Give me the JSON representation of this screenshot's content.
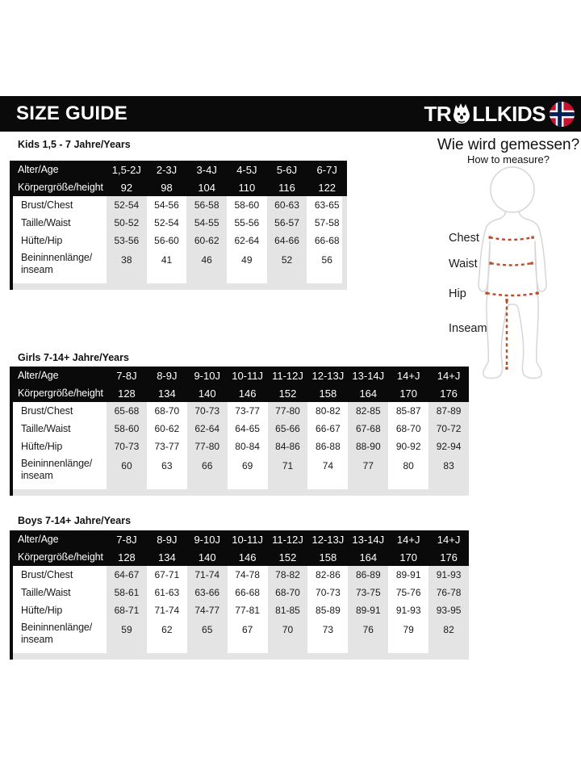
{
  "header_bar": {
    "title": "SIZE GUIDE",
    "brand_prefix": "TR",
    "brand_suffix": "LLKIDS"
  },
  "measure": {
    "title": "Wie wird gemessen?",
    "subtitle": "How to measure?",
    "labels": [
      "Chest",
      "Waist",
      "Hip",
      "Inseam"
    ]
  },
  "sections": [
    {
      "title": "Kids 1,5 - 7 Jahre/Years",
      "header_rows": [
        {
          "label": "Alter/Age",
          "values": [
            "1,5-2J",
            "2-3J",
            "3-4J",
            "4-5J",
            "5-6J",
            "6-7J"
          ]
        },
        {
          "label": "Körpergröße/height",
          "values": [
            "92",
            "98",
            "104",
            "110",
            "116",
            "122"
          ]
        }
      ],
      "rows": [
        {
          "label": "Brust/Chest",
          "values": [
            "52-54",
            "54-56",
            "56-58",
            "58-60",
            "60-63",
            "63-65"
          ]
        },
        {
          "label": "Taille/Waist",
          "values": [
            "50-52",
            "52-54",
            "54-55",
            "55-56",
            "56-57",
            "57-58"
          ]
        },
        {
          "label": "Hüfte/Hip",
          "values": [
            "53-56",
            "56-60",
            "60-62",
            "62-64",
            "64-66",
            "66-68"
          ]
        },
        {
          "label": "Beininnenlänge/\ninseam",
          "values": [
            "38",
            "41",
            "46",
            "49",
            "52",
            "56"
          ]
        }
      ]
    },
    {
      "title": "Girls 7-14+ Jahre/Years",
      "header_rows": [
        {
          "label": "Alter/Age",
          "values": [
            "7-8J",
            "8-9J",
            "9-10J",
            "10-11J",
            "11-12J",
            "12-13J",
            "13-14J",
            "14+J",
            "14+J"
          ]
        },
        {
          "label": "Körpergröße/height",
          "values": [
            "128",
            "134",
            "140",
            "146",
            "152",
            "158",
            "164",
            "170",
            "176"
          ]
        }
      ],
      "rows": [
        {
          "label": "Brust/Chest",
          "values": [
            "65-68",
            "68-70",
            "70-73",
            "73-77",
            "77-80",
            "80-82",
            "82-85",
            "85-87",
            "87-89"
          ]
        },
        {
          "label": "Taille/Waist",
          "values": [
            "58-60",
            "60-62",
            "62-64",
            "64-65",
            "65-66",
            "66-67",
            "67-68",
            "68-70",
            "70-72"
          ]
        },
        {
          "label": "Hüfte/Hip",
          "values": [
            "70-73",
            "73-77",
            "77-80",
            "80-84",
            "84-86",
            "86-88",
            "88-90",
            "90-92",
            "92-94"
          ]
        },
        {
          "label": "Beininnenlänge/\ninseam",
          "values": [
            "60",
            "63",
            "66",
            "69",
            "71",
            "74",
            "77",
            "80",
            "83"
          ]
        }
      ]
    },
    {
      "title": "Boys 7-14+ Jahre/Years",
      "header_rows": [
        {
          "label": "Alter/Age",
          "values": [
            "7-8J",
            "8-9J",
            "9-10J",
            "10-11J",
            "11-12J",
            "12-13J",
            "13-14J",
            "14+J",
            "14+J"
          ]
        },
        {
          "label": "Körpergröße/height",
          "values": [
            "128",
            "134",
            "140",
            "146",
            "152",
            "158",
            "164",
            "170",
            "176"
          ]
        }
      ],
      "rows": [
        {
          "label": "Brust/Chest",
          "values": [
            "64-67",
            "67-71",
            "71-74",
            "74-78",
            "78-82",
            "82-86",
            "86-89",
            "89-91",
            "91-93"
          ]
        },
        {
          "label": "Taille/Waist",
          "values": [
            "58-61",
            "61-63",
            "63-66",
            "66-68",
            "68-70",
            "70-73",
            "73-75",
            "75-76",
            "76-78"
          ]
        },
        {
          "label": "Hüfte/Hip",
          "values": [
            "68-71",
            "71-74",
            "74-77",
            "77-81",
            "81-85",
            "85-89",
            "89-91",
            "91-93",
            "93-95"
          ]
        },
        {
          "label": "Beininnenlänge/\ninseam",
          "values": [
            "59",
            "62",
            "65",
            "67",
            "70",
            "73",
            "76",
            "79",
            "82"
          ]
        }
      ]
    }
  ],
  "colors": {
    "bar_black": "#0a0a0a",
    "stripe_gray": "#e4e4e4",
    "text_dark": "#1a1a1a",
    "measure_line_red": "#bf4a2b",
    "figure_outline_gray": "#d6d6d6",
    "flag_red": "#c51230",
    "flag_blue": "#00205b"
  }
}
